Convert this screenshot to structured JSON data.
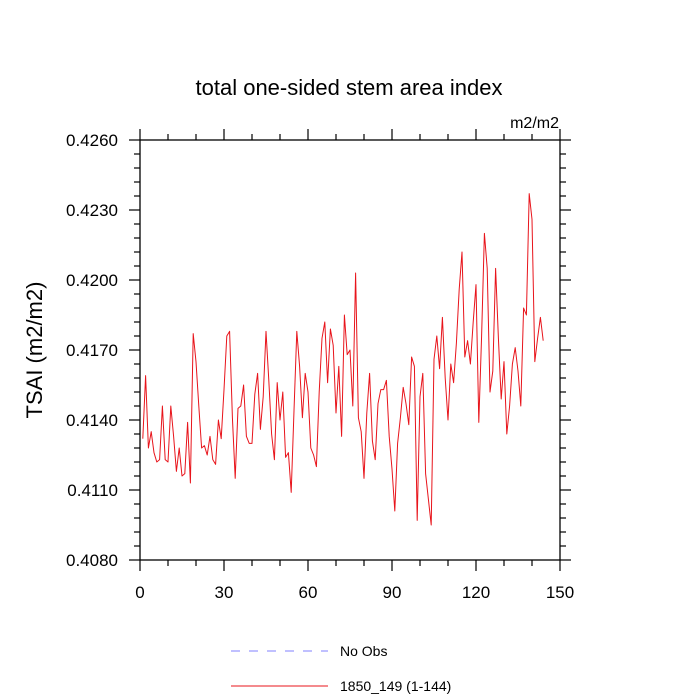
{
  "chart_data": {
    "type": "line",
    "title": "total one-sided stem area index",
    "units": "m2/m2",
    "xlabel": "",
    "ylabel": "TSAI  (m2/m2)",
    "xlim": [
      0,
      150
    ],
    "ylim": [
      0.408,
      0.426
    ],
    "x_major_ticks": [
      0,
      30,
      60,
      90,
      120,
      150
    ],
    "x_tick_labels": [
      "0",
      "30",
      "60",
      "90",
      "120",
      "150"
    ],
    "x_minor_step": 10,
    "y_major_ticks": [
      0.408,
      0.411,
      0.414,
      0.417,
      0.42,
      0.423,
      0.426
    ],
    "y_tick_labels": [
      "0.4080",
      "0.4110",
      "0.4140",
      "0.4170",
      "0.4200",
      "0.4230",
      "0.4260"
    ],
    "y_minor_step": 0.0006,
    "grid": false,
    "series": [
      {
        "name": "1850_149 (1-144)",
        "color": "#e8141b",
        "style": "solid",
        "x_start": 1,
        "values": [
          0.4132,
          0.4159,
          0.4128,
          0.4135,
          0.4126,
          0.4122,
          0.4123,
          0.4146,
          0.4123,
          0.4122,
          0.4146,
          0.4133,
          0.4118,
          0.4128,
          0.4116,
          0.4117,
          0.4139,
          0.4113,
          0.4177,
          0.4165,
          0.4146,
          0.4128,
          0.4129,
          0.4125,
          0.4133,
          0.4123,
          0.4121,
          0.414,
          0.4132,
          0.4153,
          0.4176,
          0.4178,
          0.4141,
          0.4115,
          0.4145,
          0.4146,
          0.4155,
          0.4133,
          0.413,
          0.413,
          0.4151,
          0.416,
          0.4136,
          0.415,
          0.4178,
          0.4157,
          0.4134,
          0.4123,
          0.4156,
          0.414,
          0.4152,
          0.4124,
          0.4126,
          0.4109,
          0.4144,
          0.4178,
          0.4163,
          0.4141,
          0.416,
          0.4152,
          0.4128,
          0.4125,
          0.412,
          0.4152,
          0.4175,
          0.4182,
          0.4156,
          0.4179,
          0.4172,
          0.4143,
          0.4163,
          0.4133,
          0.4185,
          0.4168,
          0.417,
          0.4146,
          0.4203,
          0.4141,
          0.4135,
          0.4115,
          0.4143,
          0.416,
          0.4131,
          0.4123,
          0.4147,
          0.4153,
          0.4153,
          0.4157,
          0.4133,
          0.4119,
          0.4101,
          0.413,
          0.4141,
          0.4154,
          0.4147,
          0.4138,
          0.4167,
          0.4163,
          0.4097,
          0.415,
          0.416,
          0.4117,
          0.4106,
          0.4095,
          0.4166,
          0.4176,
          0.4162,
          0.4184,
          0.4158,
          0.414,
          0.4164,
          0.4156,
          0.4173,
          0.4196,
          0.4212,
          0.4167,
          0.4174,
          0.4164,
          0.4182,
          0.4198,
          0.4139,
          0.4176,
          0.422,
          0.4205,
          0.4152,
          0.4161,
          0.4205,
          0.4175,
          0.4149,
          0.4165,
          0.4134,
          0.4146,
          0.4164,
          0.4171,
          0.4161,
          0.4146,
          0.4188,
          0.4185,
          0.4237,
          0.4226,
          0.4165,
          0.4175,
          0.4184,
          0.4174
        ]
      }
    ],
    "legend": [
      {
        "label": "No Obs",
        "color": "#8080ff",
        "style": "dashed"
      },
      {
        "label": "1850_149 (1-144)",
        "color": "#e8141b",
        "style": "solid"
      }
    ],
    "legend_position": "bottom"
  }
}
